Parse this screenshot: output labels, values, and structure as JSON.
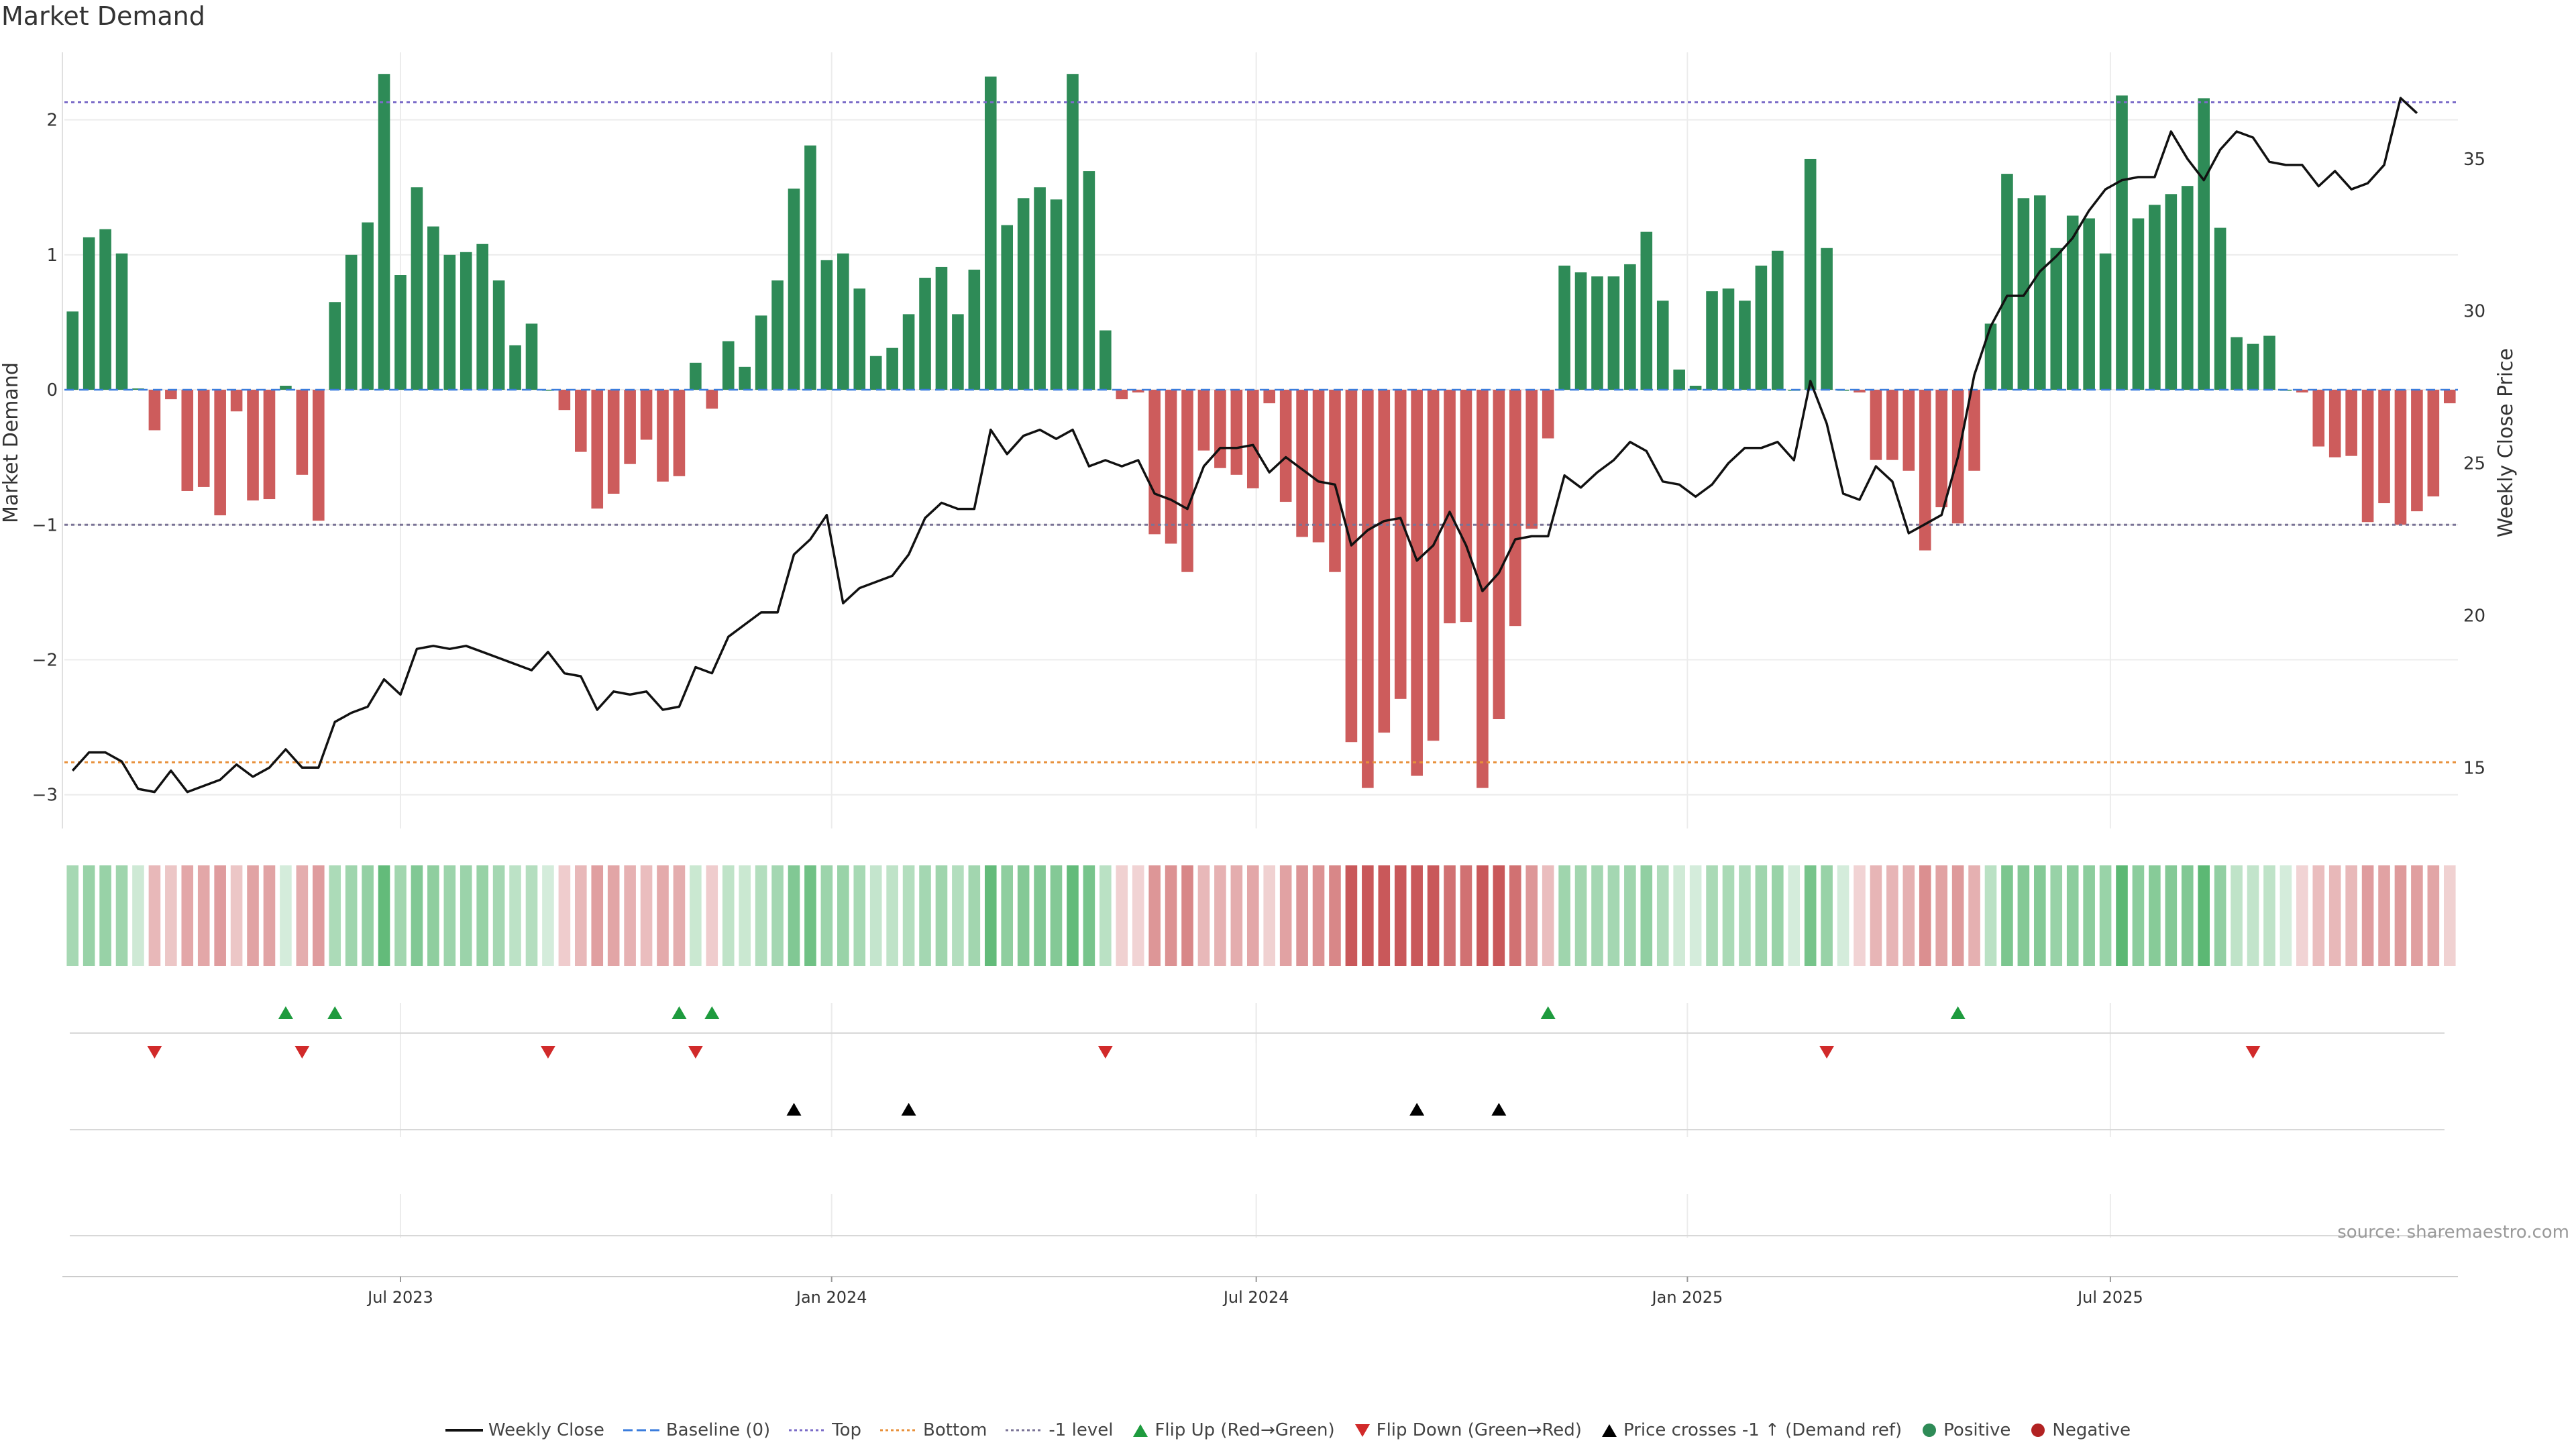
{
  "title": "Market Demand",
  "source": "source: sharemaestro.com",
  "colors": {
    "positive": "#2e8b57",
    "negative": "#cd5c5c",
    "price": "#111111",
    "top": "#7b6cc8",
    "bottom": "#e8903a",
    "neg1": "#7a7396",
    "flip_up": "#1e9b3e",
    "flip_down": "#d12a2a",
    "cross": "#000000"
  },
  "legend": [
    {
      "key": "weekly_close",
      "label": "Weekly Close",
      "icon": "solid-line-icon",
      "color": "#111111"
    },
    {
      "key": "baseline",
      "label": "Baseline (0)",
      "icon": "dashed-line-icon",
      "color": "#3b7ddd"
    },
    {
      "key": "top",
      "label": "Top",
      "icon": "dotted-line-icon",
      "color": "#7b6cc8"
    },
    {
      "key": "bottom",
      "label": "Bottom",
      "icon": "dotted-line-icon",
      "color": "#e8903a"
    },
    {
      "key": "neg1",
      "label": "-1 level",
      "icon": "dotted-line-icon",
      "color": "#7a7396"
    },
    {
      "key": "flip_up",
      "label": "Flip Up (Red→Green)",
      "icon": "triangle-up-icon",
      "color": "#1e9b3e"
    },
    {
      "key": "flip_down",
      "label": "Flip Down (Green→Red)",
      "icon": "triangle-down-icon",
      "color": "#d12a2a"
    },
    {
      "key": "cross",
      "label": "Price crosses -1 ↑ (Demand ref)",
      "icon": "triangle-up-icon",
      "color": "#000000"
    },
    {
      "key": "positive",
      "label": "Positive",
      "icon": "circle-icon",
      "color": "#2e8b57"
    },
    {
      "key": "negative",
      "label": "Negative",
      "icon": "circle-icon",
      "color": "#b22222"
    }
  ],
  "chart_data": {
    "type": "bar+line",
    "title": "Market Demand",
    "ylabel_left": "Market Demand",
    "ylabel_right": "Weekly Close Price",
    "ylim_left": [
      -3.25,
      2.5
    ],
    "ylim_right": [
      13,
      38.5
    ],
    "yticks_left": [
      2,
      1,
      0,
      -1,
      -2,
      -3
    ],
    "ytick_labels_left": [
      "2",
      "1",
      "0",
      "−1",
      "−2",
      "−3"
    ],
    "yticks_right": [
      35,
      30,
      25,
      20,
      15
    ],
    "ytick_labels_right": [
      "35",
      "30",
      "25",
      "20",
      "15"
    ],
    "x_ticks": [
      {
        "label": "Jul 2023",
        "week": 20.5
      },
      {
        "label": "Jan 2024",
        "week": 46.8
      },
      {
        "label": "Jul 2024",
        "week": 72.7
      },
      {
        "label": "Jan 2025",
        "week": 99
      },
      {
        "label": "Jul 2025",
        "week": 124.8
      }
    ],
    "reference_lines": {
      "top": 2.13,
      "bottom": -2.76,
      "minus_one": -1,
      "baseline": 0
    },
    "demand": [
      0.58,
      1.13,
      1.19,
      1.01,
      0.01,
      -0.3,
      -0.07,
      -0.75,
      -0.72,
      -0.93,
      -0.16,
      -0.82,
      -0.81,
      0.03,
      -0.63,
      -0.97,
      0.65,
      1.0,
      1.24,
      2.34,
      0.85,
      1.5,
      1.21,
      1.0,
      1.02,
      1.08,
      0.81,
      0.33,
      0.49,
      0.0,
      -0.15,
      -0.46,
      -0.88,
      -0.77,
      -0.55,
      -0.37,
      -0.68,
      -0.64,
      0.2,
      -0.14,
      0.36,
      0.17,
      0.55,
      0.81,
      1.49,
      1.81,
      0.96,
      1.01,
      0.75,
      0.25,
      0.31,
      0.56,
      0.83,
      0.91,
      0.56,
      0.89,
      2.32,
      1.22,
      1.42,
      1.5,
      1.41,
      2.34,
      1.62,
      0.44,
      -0.07,
      -0.02,
      -1.07,
      -1.14,
      -1.35,
      -0.45,
      -0.58,
      -0.63,
      -0.73,
      -0.1,
      -0.83,
      -1.09,
      -1.13,
      -1.35,
      -2.61,
      -2.95,
      -2.54,
      -2.29,
      -2.86,
      -2.6,
      -1.73,
      -1.72,
      -2.95,
      -2.44,
      -1.75,
      -1.03,
      -0.36,
      0.92,
      0.87,
      0.84,
      0.84,
      0.93,
      1.17,
      0.66,
      0.15,
      0.03,
      0.73,
      0.75,
      0.66,
      0.92,
      1.03,
      0.0,
      1.71,
      1.05,
      0.0,
      -0.02,
      -0.52,
      -0.52,
      -0.6,
      -1.19,
      -0.87,
      -0.99,
      -0.6,
      0.49,
      1.6,
      1.42,
      1.44,
      1.05,
      1.29,
      1.27,
      1.01,
      2.18,
      1.27,
      1.37,
      1.45,
      1.51,
      2.16,
      1.2,
      0.39,
      0.34,
      0.4,
      0.0,
      -0.02,
      -0.42,
      -0.5,
      -0.49,
      -0.98,
      -0.84,
      -1.0,
      -0.9,
      -0.79,
      -0.1
    ],
    "price": [
      14.9,
      15.5,
      15.5,
      15.2,
      14.3,
      14.2,
      14.9,
      14.2,
      14.4,
      14.6,
      15.1,
      14.7,
      15.0,
      15.6,
      15.0,
      15.0,
      16.5,
      16.8,
      17.0,
      17.9,
      17.4,
      18.9,
      19.0,
      18.9,
      19.0,
      18.8,
      18.6,
      18.4,
      18.2,
      18.8,
      18.1,
      18.0,
      16.9,
      17.5,
      17.4,
      17.5,
      16.9,
      17.0,
      18.3,
      18.1,
      19.3,
      19.7,
      20.1,
      20.1,
      22.0,
      22.5,
      23.3,
      20.4,
      20.9,
      21.1,
      21.3,
      22.0,
      23.2,
      23.7,
      23.5,
      23.5,
      26.1,
      25.3,
      25.9,
      26.1,
      25.8,
      26.1,
      24.9,
      25.1,
      24.9,
      25.1,
      24.0,
      23.8,
      23.5,
      24.9,
      25.5,
      25.5,
      25.6,
      24.7,
      25.2,
      24.8,
      24.4,
      24.3,
      22.3,
      22.8,
      23.1,
      23.2,
      21.8,
      22.3,
      23.4,
      22.3,
      20.8,
      21.4,
      22.5,
      22.6,
      22.6,
      24.6,
      24.2,
      24.7,
      25.1,
      25.7,
      25.4,
      24.4,
      24.3,
      23.9,
      24.3,
      25.0,
      25.5,
      25.5,
      25.7,
      25.1,
      27.7,
      26.3,
      24.0,
      23.8,
      24.9,
      24.4,
      22.7,
      23.0,
      23.3,
      25.2,
      27.9,
      29.5,
      30.5,
      30.5,
      31.3,
      31.8,
      32.4,
      33.3,
      34.0,
      34.3,
      34.4,
      34.4,
      35.9,
      35.0,
      34.3,
      35.3,
      35.9,
      35.7,
      34.9,
      34.8,
      34.8,
      34.1,
      34.6,
      34.0,
      34.2,
      34.8,
      37.0,
      36.5
    ],
    "strip_intensity": [
      0.45,
      0.55,
      0.55,
      0.5,
      0.15,
      0.3,
      0.2,
      0.42,
      0.42,
      0.5,
      0.2,
      0.45,
      0.45,
      0.1,
      0.38,
      0.5,
      0.4,
      0.5,
      0.58,
      0.95,
      0.48,
      0.72,
      0.62,
      0.52,
      0.53,
      0.56,
      0.46,
      0.28,
      0.34,
      0.1,
      0.15,
      0.3,
      0.48,
      0.44,
      0.35,
      0.26,
      0.4,
      0.38,
      0.18,
      0.15,
      0.26,
      0.18,
      0.35,
      0.46,
      0.72,
      0.85,
      0.52,
      0.54,
      0.44,
      0.22,
      0.26,
      0.35,
      0.46,
      0.5,
      0.35,
      0.48,
      0.95,
      0.62,
      0.7,
      0.72,
      0.7,
      0.95,
      0.8,
      0.3,
      0.12,
      0.1,
      0.55,
      0.58,
      0.66,
      0.3,
      0.35,
      0.38,
      0.42,
      0.12,
      0.46,
      0.56,
      0.58,
      0.66,
      1.0,
      1.0,
      1.0,
      1.0,
      1.0,
      1.0,
      0.82,
      0.82,
      1.0,
      1.0,
      0.82,
      0.54,
      0.26,
      0.5,
      0.48,
      0.46,
      0.46,
      0.5,
      0.6,
      0.38,
      0.14,
      0.1,
      0.42,
      0.42,
      0.38,
      0.5,
      0.54,
      0.1,
      0.8,
      0.55,
      0.1,
      0.1,
      0.32,
      0.32,
      0.36,
      0.6,
      0.46,
      0.52,
      0.36,
      0.3,
      0.76,
      0.7,
      0.7,
      0.55,
      0.64,
      0.64,
      0.54,
      1.0,
      0.64,
      0.68,
      0.7,
      0.72,
      1.0,
      0.6,
      0.26,
      0.24,
      0.26,
      0.1,
      0.1,
      0.26,
      0.3,
      0.3,
      0.5,
      0.46,
      0.52,
      0.48,
      0.44,
      0.12
    ],
    "flip_up_weeks": [
      13,
      16,
      37,
      39,
      90,
      115
    ],
    "flip_down_weeks": [
      5,
      14,
      29,
      38,
      63,
      107,
      133
    ],
    "price_cross_weeks": [
      44,
      51,
      82,
      87
    ]
  }
}
